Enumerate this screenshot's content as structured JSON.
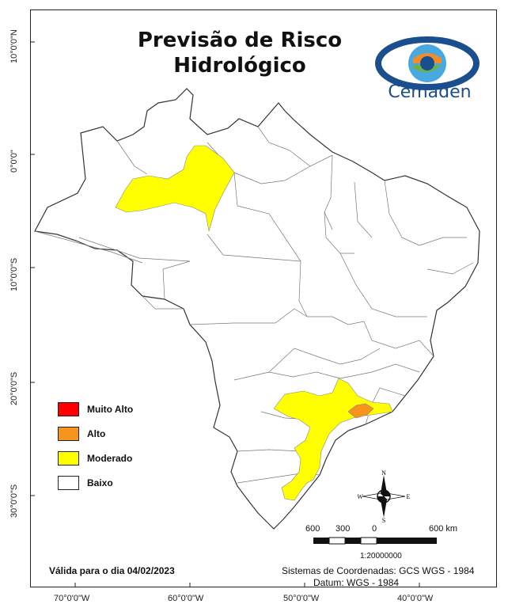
{
  "title": {
    "line1": "Previsão de Risco",
    "line2": "Hidrológico"
  },
  "logo": {
    "text": "Cemaden",
    "icon": "cemaden-eye-logo",
    "colors": {
      "blue": "#1a4e8c",
      "light_blue": "#4aa8e0",
      "orange": "#f28c28",
      "green": "#6ab04c"
    }
  },
  "latitude_labels": [
    "10°0'0\"N",
    "0°0'0\"",
    "10°0'0\"S",
    "20°0'0\"S",
    "30°0'0\"S"
  ],
  "longitude_labels": [
    "70°0'0\"W",
    "60°0'0\"W",
    "50°0'0\"W",
    "40°0'0\"W"
  ],
  "legend": {
    "items": [
      {
        "label": "Muito Alto",
        "color": "#ff0000"
      },
      {
        "label": "Alto",
        "color": "#f7941d"
      },
      {
        "label": "Moderado",
        "color": "#ffff00"
      },
      {
        "label": "Baixo",
        "color": "#ffffff"
      }
    ]
  },
  "validity": "Válida para o dia 04/02/2023",
  "coordinate_system": {
    "line1": "Sistemas de Coordenadas: GCS WGS - 1984",
    "line2": "Datum: WGS - 1984"
  },
  "scale_bar": {
    "labels": [
      "600",
      "300",
      "0",
      "600 km"
    ],
    "ratio": "1:20000000"
  },
  "compass": {
    "n": "N",
    "s": "S",
    "e": "E",
    "w": "W"
  },
  "map_colors": {
    "boundary": "#555555",
    "land": "#ffffff",
    "moderado": "#ffff00",
    "alto": "#f7941d"
  }
}
